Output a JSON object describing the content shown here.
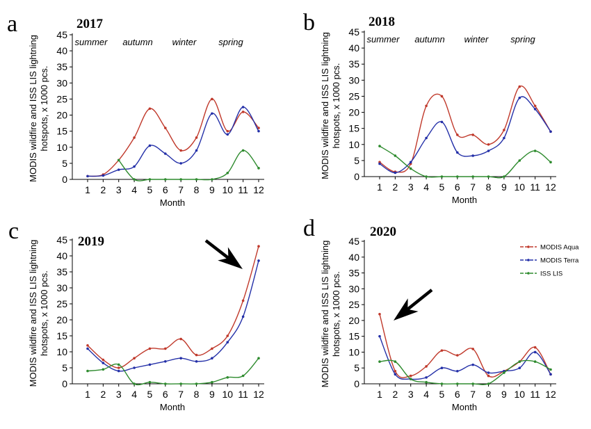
{
  "shared": {
    "xlabel": "Month",
    "ylabel_line1": "MODIS wildfire and ISS LIS lightning",
    "ylabel_line2": "hotspots, x 1000 pcs.",
    "yticks": [
      "0",
      "5",
      "10",
      "15",
      "20",
      "25",
      "30",
      "35",
      "40",
      "45"
    ],
    "xticks": [
      "1",
      "2",
      "3",
      "4",
      "5",
      "6",
      "7",
      "8",
      "9",
      "10",
      "11",
      "12"
    ],
    "seasons": [
      "summer",
      "autumn",
      "winter",
      "spring"
    ]
  },
  "legend": [
    {
      "name": "MODIS Aqua",
      "color": "#c0392b"
    },
    {
      "name": "MODIS Terra",
      "color": "#2430a8"
    },
    {
      "name": "ISS LIS",
      "color": "#2e8b2e"
    }
  ],
  "chart_data": [
    {
      "panel": "a",
      "title": "2017",
      "type": "line",
      "x": [
        1,
        2,
        3,
        4,
        5,
        6,
        7,
        8,
        9,
        10,
        11,
        12
      ],
      "ylim": [
        0,
        45
      ],
      "xlabel": "Month",
      "ylabel": "MODIS wildfire and ISS LIS lightning hotspots, x 1000 pcs.",
      "series": [
        {
          "name": "MODIS Aqua",
          "color": "#c0392b",
          "values": [
            1,
            1.5,
            6,
            13,
            22,
            16,
            9,
            13,
            25,
            15,
            21,
            16
          ]
        },
        {
          "name": "MODIS Terra",
          "color": "#2430a8",
          "values": [
            1,
            1.2,
            3,
            4,
            10.5,
            8,
            5,
            9,
            20.5,
            14,
            22.5,
            15
          ]
        },
        {
          "name": "ISS LIS",
          "color": "#2e8b2e",
          "values": [
            null,
            null,
            6,
            0,
            0,
            0,
            0,
            0,
            0,
            2,
            9,
            3.5
          ]
        }
      ]
    },
    {
      "panel": "b",
      "title": "2018",
      "type": "line",
      "x": [
        1,
        2,
        3,
        4,
        5,
        6,
        7,
        8,
        9,
        10,
        11,
        12
      ],
      "ylim": [
        0,
        45
      ],
      "xlabel": "Month",
      "ylabel": "MODIS wildfire and ISS LIS lightning hotspots, x 1000 pcs.",
      "series": [
        {
          "name": "MODIS Aqua",
          "color": "#c0392b",
          "values": [
            4.5,
            1.5,
            4,
            22,
            25,
            13,
            13,
            10,
            14.5,
            28,
            22,
            14
          ]
        },
        {
          "name": "MODIS Terra",
          "color": "#2430a8",
          "values": [
            4,
            1.2,
            4.5,
            12,
            17,
            7.5,
            6.5,
            8,
            12,
            24.5,
            21,
            14
          ]
        },
        {
          "name": "ISS LIS",
          "color": "#2e8b2e",
          "values": [
            9.5,
            6.5,
            2.5,
            0,
            0,
            0,
            0,
            0,
            0,
            5,
            8,
            4.5
          ]
        }
      ]
    },
    {
      "panel": "c",
      "title": "2019",
      "type": "line",
      "x": [
        1,
        2,
        3,
        4,
        5,
        6,
        7,
        8,
        9,
        10,
        11,
        12
      ],
      "ylim": [
        0,
        45
      ],
      "xlabel": "Month",
      "ylabel": "MODIS wildfire and ISS LIS lightning hotspots, x 1000 pcs.",
      "series": [
        {
          "name": "MODIS Aqua",
          "color": "#c0392b",
          "values": [
            12,
            7.5,
            5,
            8,
            11,
            11,
            14,
            9,
            11,
            15,
            26,
            43
          ]
        },
        {
          "name": "MODIS Terra",
          "color": "#2430a8",
          "values": [
            11,
            6.5,
            4,
            5,
            6,
            7,
            8,
            7,
            8,
            13,
            21,
            38.5
          ]
        },
        {
          "name": "ISS LIS",
          "color": "#2e8b2e",
          "values": [
            4,
            4.5,
            6,
            0,
            0.5,
            0,
            0,
            0,
            0.5,
            2,
            2.5,
            8
          ]
        }
      ]
    },
    {
      "panel": "d",
      "title": "2020",
      "type": "line",
      "x": [
        1,
        2,
        3,
        4,
        5,
        6,
        7,
        8,
        9,
        10,
        11,
        12
      ],
      "ylim": [
        0,
        45
      ],
      "xlabel": "Month",
      "ylabel": "MODIS wildfire and ISS LIS lightning hotspots, x 1000 pcs.",
      "series": [
        {
          "name": "MODIS Aqua",
          "color": "#c0392b",
          "values": [
            22,
            4,
            2.5,
            5.5,
            10.5,
            9,
            11,
            2.5,
            4,
            7,
            11.5,
            3
          ]
        },
        {
          "name": "MODIS Terra",
          "color": "#2430a8",
          "values": [
            15,
            3,
            1.5,
            2,
            5,
            4,
            6,
            3.5,
            4,
            5,
            10,
            3
          ]
        },
        {
          "name": "ISS LIS",
          "color": "#2e8b2e",
          "values": [
            7,
            7,
            1.5,
            0.5,
            0,
            0,
            0,
            0,
            3.5,
            7,
            7,
            4.5
          ]
        }
      ]
    }
  ]
}
